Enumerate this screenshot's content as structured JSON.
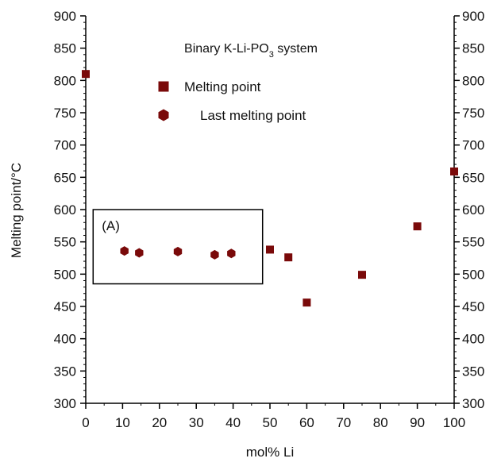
{
  "chart_data": {
    "type": "scatter",
    "title": "Binary K-Li-PO",
    "title_subscript": "3",
    "title_suffix": " system",
    "xlabel": "mol% Li",
    "ylabel": "Melting point/°C",
    "xlim": [
      0,
      100
    ],
    "ylim": [
      300,
      900
    ],
    "x_ticks": [
      0,
      10,
      20,
      30,
      40,
      50,
      60,
      70,
      80,
      90,
      100
    ],
    "y_ticks": [
      300,
      350,
      400,
      450,
      500,
      550,
      600,
      650,
      700,
      750,
      800,
      850,
      900
    ],
    "grid": false,
    "legend_position": "top-center",
    "marker_color": "#7a0a0a",
    "series": [
      {
        "name": "Melting point",
        "marker": "square",
        "points": [
          {
            "x": 0,
            "y": 810
          },
          {
            "x": 50,
            "y": 538
          },
          {
            "x": 55,
            "y": 526
          },
          {
            "x": 60,
            "y": 456
          },
          {
            "x": 75,
            "y": 499
          },
          {
            "x": 90,
            "y": 574
          },
          {
            "x": 100,
            "y": 659
          }
        ]
      },
      {
        "name": "Last melting point",
        "marker": "hexagon",
        "points": [
          {
            "x": 10.5,
            "y": 536
          },
          {
            "x": 14.5,
            "y": 533
          },
          {
            "x": 25,
            "y": 535
          },
          {
            "x": 35,
            "y": 530
          },
          {
            "x": 39.5,
            "y": 532
          }
        ]
      }
    ],
    "annotations": [
      {
        "label": "(A)",
        "box_x": [
          2,
          48
        ],
        "box_y": [
          485,
          600
        ]
      }
    ]
  }
}
